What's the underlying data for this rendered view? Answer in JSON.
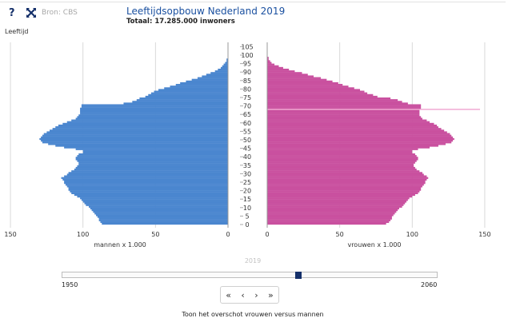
{
  "header": {
    "help_label": "?",
    "tool_icon": "crossed-arrows-icon",
    "source": "Bron: CBS",
    "title": "Leeftijdsopbouw Nederland 2019",
    "subtitle": "Totaal: 17.285.000 inwoners"
  },
  "colors": {
    "men": "#4a86cf",
    "women": "#c9509f",
    "marker_line": "#f1a9d3"
  },
  "chart_data": {
    "type": "bar",
    "orientation": "horizontal-population-pyramid",
    "title": "Leeftijdsopbouw Nederland 2019",
    "ylabel": "Leeftijd",
    "age_ticks": [
      0,
      5,
      10,
      15,
      20,
      25,
      30,
      35,
      40,
      45,
      50,
      55,
      60,
      65,
      70,
      75,
      80,
      85,
      90,
      95,
      100,
      105
    ],
    "x_ticks": [
      150,
      100,
      50,
      0
    ],
    "xlim": [
      0,
      150
    ],
    "men_xlabel": "mannen x 1.000",
    "women_xlabel": "vrouwen x 1.000",
    "highlight_age": 68,
    "ages": [
      0,
      1,
      2,
      3,
      4,
      5,
      6,
      7,
      8,
      9,
      10,
      11,
      12,
      13,
      14,
      15,
      16,
      17,
      18,
      19,
      20,
      21,
      22,
      23,
      24,
      25,
      26,
      27,
      28,
      29,
      30,
      31,
      32,
      33,
      34,
      35,
      36,
      37,
      38,
      39,
      40,
      41,
      42,
      43,
      44,
      45,
      46,
      47,
      48,
      49,
      50,
      51,
      52,
      53,
      54,
      55,
      56,
      57,
      58,
      59,
      60,
      61,
      62,
      63,
      64,
      65,
      66,
      67,
      68,
      69,
      70,
      71,
      72,
      73,
      74,
      75,
      76,
      77,
      78,
      79,
      80,
      81,
      82,
      83,
      84,
      85,
      86,
      87,
      88,
      89,
      90,
      91,
      92,
      93,
      94,
      95,
      96,
      97,
      98,
      99,
      100
    ],
    "series": [
      {
        "name": "mannen",
        "values": [
          87,
          88,
          89,
          89,
          90,
          91,
          92,
          93,
          94,
          95,
          96,
          98,
          99,
          100,
          101,
          102,
          104,
          106,
          108,
          109,
          110,
          110,
          111,
          112,
          113,
          113,
          114,
          115,
          113,
          111,
          110,
          108,
          106,
          105,
          104,
          103,
          103,
          104,
          105,
          105,
          104,
          103,
          100,
          100,
          105,
          113,
          119,
          124,
          128,
          129,
          130,
          129,
          128,
          127,
          125,
          123,
          121,
          119,
          117,
          114,
          111,
          108,
          105,
          104,
          103,
          102,
          102,
          102,
          102,
          101,
          101,
          72,
          66,
          63,
          61,
          57,
          55,
          53,
          51,
          48,
          44,
          40,
          36,
          33,
          29,
          25,
          21,
          18,
          15,
          12,
          9,
          7,
          5,
          4,
          3,
          2,
          1,
          1,
          0,
          0,
          0
        ]
      },
      {
        "name": "vrouwen",
        "values": [
          82,
          84,
          85,
          86,
          86,
          87,
          88,
          89,
          90,
          91,
          93,
          94,
          95,
          96,
          97,
          98,
          100,
          102,
          104,
          105,
          106,
          106,
          107,
          108,
          109,
          109,
          110,
          111,
          110,
          108,
          107,
          105,
          103,
          102,
          101,
          101,
          102,
          103,
          104,
          104,
          103,
          102,
          100,
          100,
          104,
          112,
          118,
          123,
          127,
          128,
          129,
          128,
          127,
          126,
          124,
          122,
          120,
          118,
          117,
          115,
          112,
          110,
          107,
          106,
          105,
          105,
          105,
          105,
          106,
          106,
          106,
          97,
          93,
          90,
          85,
          76,
          73,
          69,
          67,
          64,
          60,
          56,
          52,
          49,
          45,
          41,
          37,
          32,
          28,
          24,
          19,
          15,
          11,
          8,
          5,
          3,
          2,
          1,
          1,
          0,
          0
        ]
      }
    ]
  },
  "timeline": {
    "current_year": "2019",
    "min_label": "1950",
    "max_label": "2060",
    "value": 2019
  },
  "controls": {
    "first_label": "«",
    "prev_label": "‹",
    "next_label": "›",
    "last_label": "»",
    "toggle_text": "Toon het overschot vrouwen versus mannen"
  }
}
